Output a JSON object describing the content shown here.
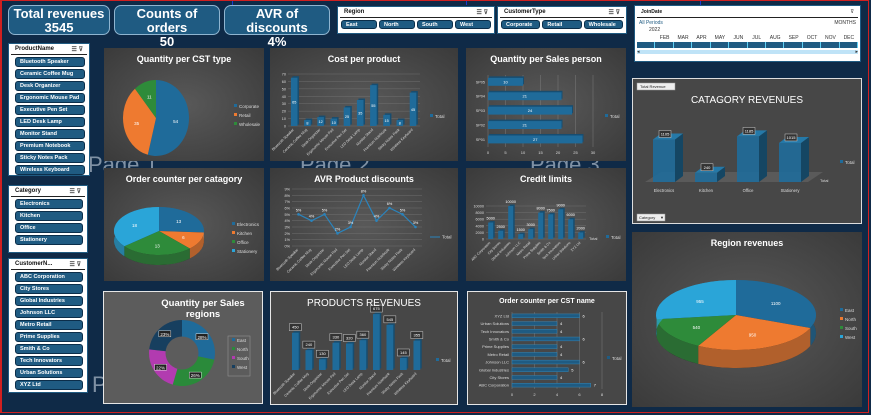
{
  "kpis": [
    {
      "title": "Total revenues",
      "value": "3545"
    },
    {
      "title": "Counts of orders",
      "value": "50"
    },
    {
      "title": "AVR of discounts",
      "value": "4%"
    }
  ],
  "slicers": {
    "region": {
      "title": "Region",
      "items": [
        "East",
        "North",
        "South",
        "West"
      ]
    },
    "customer_type": {
      "title": "CustomerType",
      "items": [
        "Corporate",
        "Retail",
        "Wholesale"
      ]
    },
    "product_name": {
      "title": "ProductName",
      "items": [
        "Bluetooth Speaker",
        "Ceramic Coffee Mug",
        "Desk Organizer",
        "Ergonomic Mouse Pad",
        "Executive Pen Set",
        "LED Desk Lamp",
        "Monitor Stand",
        "Premium Notebook",
        "Sticky Notes Pack",
        "Wireless Keyboard"
      ]
    },
    "category": {
      "title": "Category",
      "items": [
        "Electronics",
        "Kitchen",
        "Office",
        "Stationery"
      ]
    },
    "customer_name": {
      "title": "CustomerN...",
      "items": [
        "ABC Corporation",
        "City Stores",
        "Global Industries",
        "Johnson LLC",
        "Metro Retail",
        "Prime Supplies",
        "Smith & Co",
        "Tech Innovators",
        "Urban Solutions",
        "XYZ Ltd"
      ]
    },
    "clear_filter_icon": "filter-clear-icon",
    "multi_select_icon": "multi-select-icon"
  },
  "timeline": {
    "title": "JoinDate",
    "period_label": "All Periods",
    "level": "MONTHS",
    "year": "2022",
    "months": [
      "",
      "FEB",
      "MAR",
      "APR",
      "MAY",
      "JUN",
      "JUL",
      "AUG",
      "SEP",
      "OCT",
      "NOV",
      "DEC"
    ]
  },
  "page_watermark": [
    "Page 1",
    "Page 2",
    "Page 3",
    "P"
  ],
  "legend_total": "Total",
  "chart_data": [
    {
      "id": "qty_cst_type",
      "type": "pie",
      "title": "Quantity per CST type",
      "categories": [
        "Corporate",
        "Retail",
        "Wholesale"
      ],
      "values": [
        54,
        35,
        11
      ],
      "colors": [
        "#1f6b9a",
        "#ee7a30",
        "#2e8b3a"
      ],
      "legend": "right"
    },
    {
      "id": "cost_per_product",
      "type": "bar",
      "title": "Cost per product",
      "categories": [
        "Bluetooth Speaker",
        "Ceramic Coffee Mug",
        "Desk Organizer",
        "Ergonomic Mouse Pad",
        "Executive Pen Set",
        "LED Desk Lamp",
        "Monitor Stand",
        "Premium Notebook",
        "Sticky Notes Pack",
        "Wireless Keyboard"
      ],
      "values": [
        65,
        8,
        12,
        10,
        25,
        35,
        55,
        15,
        8,
        45
      ],
      "ylim": [
        0,
        70
      ],
      "yticks": [
        0,
        10,
        20,
        30,
        40,
        50,
        60,
        70
      ],
      "legend": "right",
      "series_name": "Total"
    },
    {
      "id": "qty_sales_person",
      "type": "bar",
      "orientation": "horizontal",
      "title": "Quantity per Sales person",
      "categories": [
        "SP05",
        "SP04",
        "SP03",
        "SP02",
        "SP01"
      ],
      "values": [
        10,
        21,
        24,
        21,
        27
      ],
      "xlim": [
        0,
        30
      ],
      "xticks": [
        0,
        5,
        10,
        15,
        20,
        25,
        30
      ],
      "legend": "right",
      "series_name": "Total"
    },
    {
      "id": "category_revenues",
      "type": "bar",
      "title": "CATAGORY REVENUES",
      "categories": [
        "Electronics",
        "Kitchen",
        "Office",
        "Stationery"
      ],
      "values": [
        1105,
        240,
        1185,
        1015
      ],
      "field_button": "Total Revenue",
      "axis_button": "Category",
      "depth_label": "Total",
      "legend": "right",
      "series_name": "Total"
    },
    {
      "id": "order_counter_category",
      "type": "pie",
      "title": "Order counter per catagory",
      "categories": [
        "Electronics",
        "Kitchen",
        "Office",
        "Stationery"
      ],
      "values": [
        13,
        6,
        13,
        18
      ],
      "colors": [
        "#1f6b9a",
        "#ee7a30",
        "#2e8b3a",
        "#2aa5d8"
      ],
      "legend": "right"
    },
    {
      "id": "avr_product_discounts",
      "type": "line",
      "title": "AVR Product discounts",
      "categories": [
        "Bluetooth Speaker",
        "Ceramic Coffee Mug",
        "Desk Organizer",
        "Ergonomic Mouse Pad",
        "Executive Pen Set",
        "LED Desk Lamp",
        "Monitor Stand",
        "Premium Notebook",
        "Sticky Notes Pack",
        "Wireless Keyboard"
      ],
      "values": [
        5,
        4,
        5,
        2,
        3,
        8,
        4,
        6,
        5,
        3
      ],
      "ylim": [
        0,
        9
      ],
      "yticks": [
        "0%",
        "1%",
        "2%",
        "3%",
        "4%",
        "5%",
        "6%",
        "7%",
        "8%",
        "9%"
      ],
      "labels": [
        "5%",
        "4%",
        "5%",
        "2%",
        "3%",
        "8%",
        "4%",
        "6%",
        "5%",
        "3%"
      ],
      "legend": "right",
      "series_name": "Total"
    },
    {
      "id": "credit_limits",
      "type": "bar",
      "title": "Credit limits",
      "categories": [
        "ABC Corporation",
        "City Stores",
        "Global Industries",
        "Johnson LLC",
        "Metro Retail",
        "Prime Supplies",
        "Smith & Co",
        "Tech Innovators",
        "Urban Solutions",
        "XYZ Ltd"
      ],
      "values": [
        5000,
        2500,
        10000,
        1500,
        3000,
        8000,
        7500,
        9000,
        6000,
        2000
      ],
      "ylim": [
        0,
        10000
      ],
      "yticks": [
        0,
        2000,
        4000,
        6000,
        8000,
        10000
      ],
      "depth_label": "Total",
      "legend": "right",
      "series_name": "Total"
    },
    {
      "id": "qty_sales_regions",
      "type": "pie",
      "donut": true,
      "title": "Quantity per Sales regions",
      "categories": [
        "East",
        "North",
        "South",
        "West"
      ],
      "values": [
        28,
        26,
        22,
        23
      ],
      "labels": [
        "28%",
        "26%",
        "22%",
        "23%"
      ],
      "colors": [
        "#1f6b9a",
        "#2a8a3a",
        "#b23bb0",
        "#173f5f"
      ],
      "legend": "right"
    },
    {
      "id": "products_revenues",
      "type": "bar",
      "title": "PRODUCTS REVENUES",
      "categories": [
        "Bluetooth Speaker",
        "Ceramic Coffee Mug",
        "Desk Organizer",
        "Ergonomic Mouse Pad",
        "Executive Pen Set",
        "LED Desk Lamp",
        "Monitor Stand",
        "Premium Notebook",
        "Sticky Notes Pack",
        "Wireless Keyboard"
      ],
      "values": [
        450,
        240,
        130,
        330,
        320,
        360,
        675,
        545,
        145,
        355
      ],
      "legend": "right",
      "series_name": "Total"
    },
    {
      "id": "order_counter_cst_name",
      "type": "bar",
      "orientation": "horizontal",
      "title": "Order counter per CST name",
      "categories": [
        "XYZ Ltd",
        "Urban Solutions",
        "Tech Innovators",
        "Smith & Co",
        "Prime Supplies",
        "Metro Retail",
        "Johnson LLC",
        "Global Industries",
        "City Stores",
        "ABC Corporation"
      ],
      "values": [
        6,
        4,
        4,
        6,
        4,
        4,
        6,
        5,
        4,
        7
      ],
      "xlim": [
        0,
        8
      ],
      "xticks": [
        0,
        2,
        4,
        6,
        8
      ],
      "legend": "right",
      "series_name": "Total"
    },
    {
      "id": "region_revenues",
      "type": "pie",
      "title": "Region revenues",
      "categories": [
        "East",
        "North",
        "South",
        "West"
      ],
      "values": [
        1100,
        950,
        540,
        955
      ],
      "labels": [
        "1100",
        "950",
        "540",
        "955"
      ],
      "colors": [
        "#1f6b9a",
        "#ee7a30",
        "#2e8b3a",
        "#2aa5d8"
      ],
      "legend": "right"
    }
  ]
}
